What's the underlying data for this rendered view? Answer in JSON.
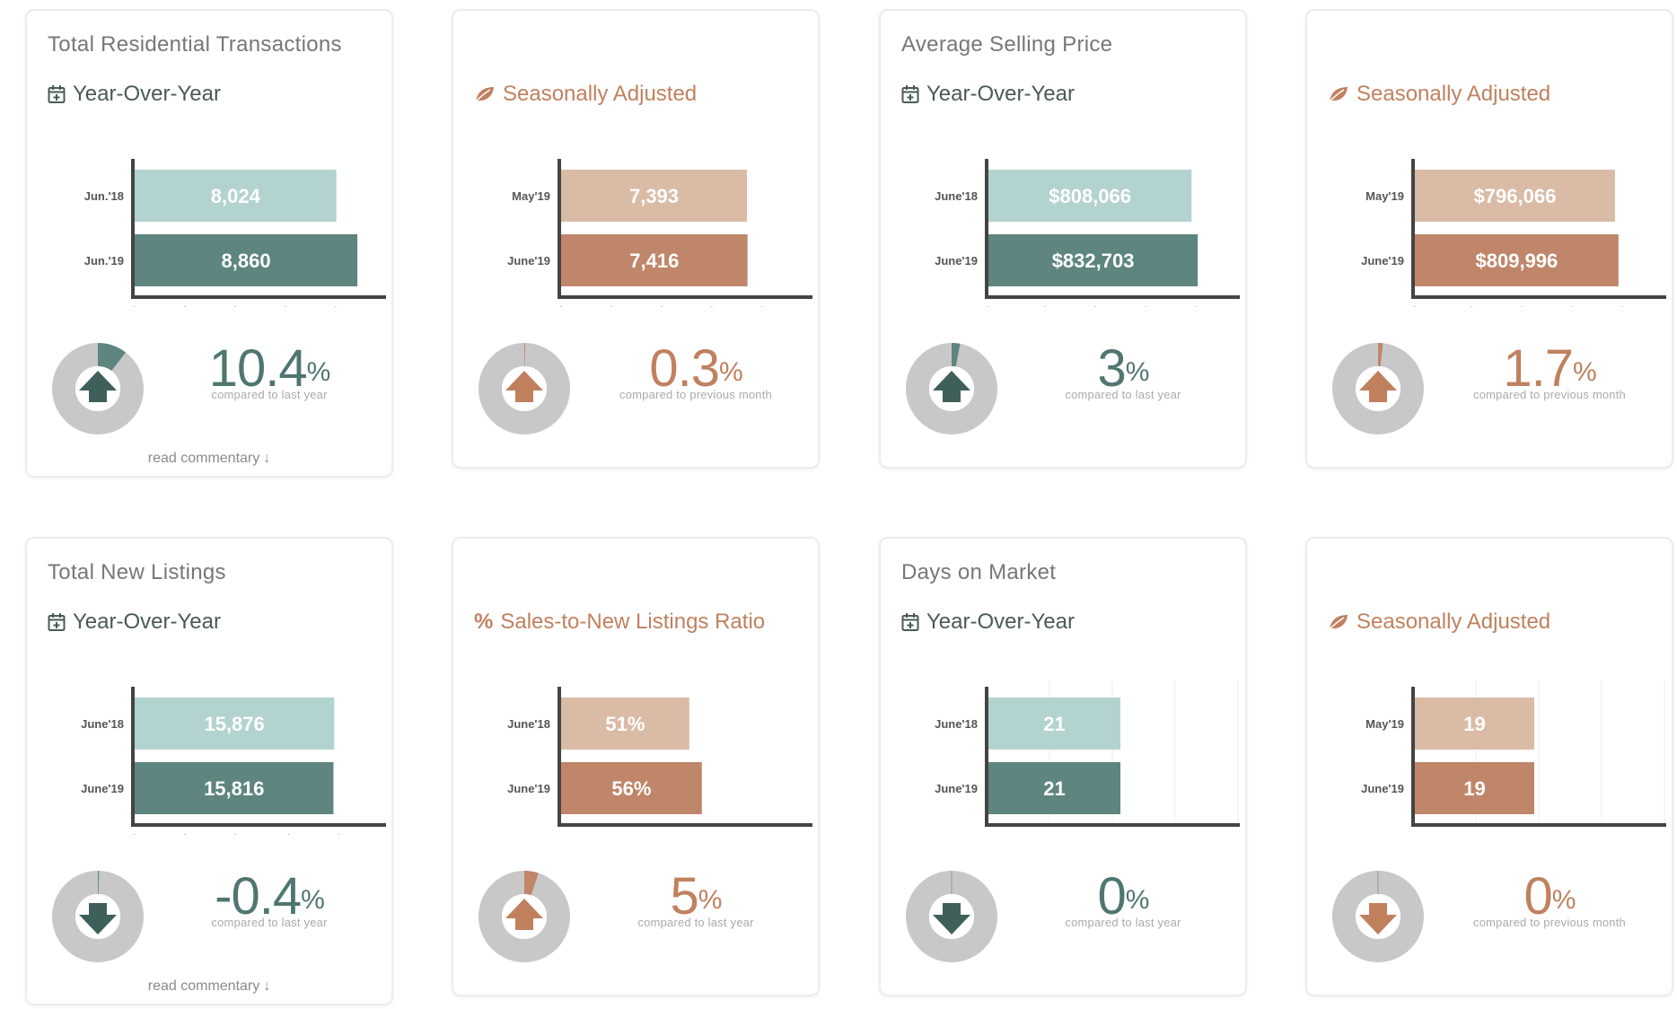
{
  "cards": [
    {
      "title": "Total Residential Transactions",
      "subtitle": "Year-Over-Year",
      "sub_icon": "calendar-icon",
      "theme": "green",
      "change_value": "10.4",
      "change_label": "compared to last year",
      "direction": "up",
      "commentary": "read commentary",
      "chart_data": {
        "type": "bar",
        "categories": [
          "Jun.'18",
          "Jun.'19"
        ],
        "values": [
          8024,
          8860
        ],
        "value_labels": [
          "8,024",
          "8,860"
        ],
        "xlim": [
          0,
          10000
        ],
        "ticks": [
          "0k",
          "2k",
          "4k",
          "6k",
          "8k",
          "10k"
        ],
        "tick_values": [
          0,
          2000,
          4000,
          6000,
          8000,
          10000
        ],
        "grid": false,
        "colors": [
          "#b3d3d0",
          "#5e8580"
        ]
      }
    },
    {
      "title": "",
      "subtitle": "Seasonally Adjusted",
      "sub_icon": "leaf-icon",
      "theme": "orange",
      "change_value": "0.3",
      "change_label": "compared to previous month",
      "direction": "up",
      "commentary": "",
      "chart_data": {
        "type": "bar",
        "categories": [
          "May'19",
          "June'19"
        ],
        "values": [
          7393,
          7416
        ],
        "value_labels": [
          "7,393",
          "7,416"
        ],
        "xlim": [
          0,
          10000
        ],
        "ticks": [
          "0k",
          "2k",
          "4k",
          "6k",
          "8k",
          "10k"
        ],
        "tick_values": [
          0,
          2000,
          4000,
          6000,
          8000,
          10000
        ],
        "grid": false,
        "colors": [
          "#d9bba6",
          "#c0866a"
        ]
      }
    },
    {
      "title": "Average Selling Price",
      "subtitle": "Year-Over-Year",
      "sub_icon": "calendar-icon",
      "theme": "green",
      "change_value": "3",
      "change_label": "compared to last year",
      "direction": "up",
      "commentary": "",
      "chart_data": {
        "type": "bar",
        "categories": [
          "June'18",
          "June'19"
        ],
        "values": [
          808066,
          832703
        ],
        "value_labels": [
          "$808,066",
          "$832,703"
        ],
        "xlim": [
          0,
          1000000
        ],
        "ticks": [
          "0k",
          "200k",
          "400k",
          "600k",
          "800k",
          "1000k"
        ],
        "tick_values": [
          0,
          200000,
          400000,
          600000,
          800000,
          1000000
        ],
        "grid": false,
        "colors": [
          "#b3d3d0",
          "#5e8580"
        ]
      }
    },
    {
      "title": "",
      "subtitle": "Seasonally Adjusted",
      "sub_icon": "leaf-icon",
      "theme": "orange",
      "change_value": "1.7",
      "change_label": "compared to previous month",
      "direction": "up",
      "commentary": "",
      "chart_data": {
        "type": "bar",
        "categories": [
          "May'19",
          "June'19"
        ],
        "values": [
          796066,
          809996
        ],
        "value_labels": [
          "$796,066",
          "$809,996"
        ],
        "xlim": [
          0,
          1000000
        ],
        "ticks": [
          "0k",
          "200k",
          "400k",
          "600k",
          "800k",
          "1000k"
        ],
        "tick_values": [
          0,
          200000,
          400000,
          600000,
          800000,
          1000000
        ],
        "grid": false,
        "colors": [
          "#d9bba6",
          "#c0866a"
        ]
      }
    },
    {
      "title": "Total New Listings",
      "subtitle": "Year-Over-Year",
      "sub_icon": "calendar-icon",
      "theme": "green",
      "change_value": "-0.4",
      "change_label": "compared to last year",
      "direction": "down",
      "commentary": "read commentary",
      "chart_data": {
        "type": "bar",
        "categories": [
          "June'18",
          "June'19"
        ],
        "values": [
          15876,
          15816
        ],
        "value_labels": [
          "15,876",
          "15,816"
        ],
        "xlim": [
          0,
          20000
        ],
        "ticks": [
          "0k",
          "4k",
          "8k",
          "12k",
          "16k",
          "20k"
        ],
        "tick_values": [
          0,
          4000,
          8000,
          12000,
          16000,
          20000
        ],
        "grid": false,
        "colors": [
          "#b3d3d0",
          "#5e8580"
        ]
      }
    },
    {
      "title": "",
      "subtitle": "Sales-to-New Listings Ratio",
      "sub_icon": "percent-icon",
      "theme": "orange",
      "change_value": "5",
      "change_label": "compared to last year",
      "direction": "up",
      "commentary": "",
      "chart_data": {
        "type": "bar",
        "categories": [
          "June'18",
          "June'19"
        ],
        "values": [
          51,
          56
        ],
        "value_labels": [
          "51%",
          "56%"
        ],
        "xlim": [
          0,
          100
        ],
        "ticks": [
          "0",
          "20",
          "40",
          "60",
          "80",
          "100"
        ],
        "tick_values": [
          0,
          20,
          40,
          60,
          80,
          100
        ],
        "grid": false,
        "colors": [
          "#d9bba6",
          "#c0866a"
        ]
      }
    },
    {
      "title": "Days on Market",
      "subtitle": "Year-Over-Year",
      "sub_icon": "calendar-icon",
      "theme": "green",
      "change_value": "0",
      "change_label": "compared to last year",
      "direction": "down",
      "commentary": "",
      "chart_data": {
        "type": "bar",
        "categories": [
          "June'18",
          "June'19"
        ],
        "values": [
          21,
          21
        ],
        "value_labels": [
          "21",
          "21"
        ],
        "xlim": [
          0,
          40
        ],
        "ticks": [
          "0",
          "10",
          "20",
          "30",
          "40"
        ],
        "tick_values": [
          0,
          10,
          20,
          30,
          40
        ],
        "grid": true,
        "colors": [
          "#b3d3d0",
          "#5e8580"
        ]
      }
    },
    {
      "title": "",
      "subtitle": "Seasonally Adjusted",
      "sub_icon": "leaf-icon",
      "theme": "orange",
      "change_value": "0",
      "change_label": "compared to previous month",
      "direction": "down",
      "commentary": "",
      "chart_data": {
        "type": "bar",
        "categories": [
          "May'19",
          "June'19"
        ],
        "values": [
          19,
          19
        ],
        "value_labels": [
          "19",
          "19"
        ],
        "xlim": [
          0,
          40
        ],
        "ticks": [
          "0",
          "10",
          "20",
          "30",
          "40"
        ],
        "tick_values": [
          0,
          10,
          20,
          30,
          40
        ],
        "grid": true,
        "colors": [
          "#d9bba6",
          "#c0866a"
        ]
      }
    }
  ],
  "colors": {
    "green_dark": "#4f7670",
    "orange_dark": "#c0815f",
    "ring_grey": "#c8c8c8"
  }
}
